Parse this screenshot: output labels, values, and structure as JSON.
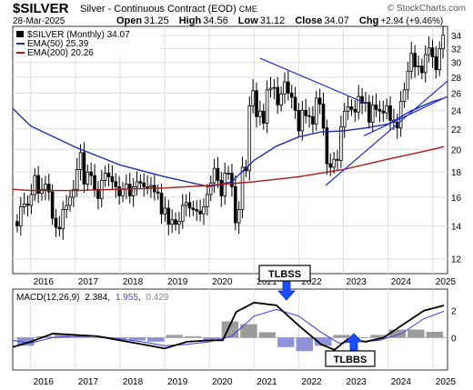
{
  "header": {
    "symbol": "$SILVER",
    "description": "Silver - Continuous Contract (EOD)",
    "exchange": "CME",
    "watermark": "© StockCharts.com",
    "date": "28-Mar-2025",
    "open_label": "Open",
    "open": "31.25",
    "high_label": "High",
    "high": "34.56",
    "low_label": "Low",
    "low": "31.12",
    "close_label": "Close",
    "close": "34.07",
    "chg_label": "Chg",
    "chg": "+2.94 (+9.46%)"
  },
  "legend": {
    "price": "$SILVER (Monthly) 34.07",
    "ema50": "EMA(50) 25.39",
    "ema200": "EMA(200) 20.26"
  },
  "macd_legend": {
    "name": "MACD(12,26,9)",
    "macd": "2.384",
    "signal": "1.955",
    "hist": "0.429"
  },
  "annotations": {
    "tlbss": "TLBSS",
    "tlbbs": "TLBBS"
  },
  "colors": {
    "up": "#ffffff",
    "down": "#000000",
    "ema50": "#1f2fa8",
    "ema200": "#b01818",
    "trendline": "#2030c8",
    "signal": "#4848e0",
    "hist": "#8a8a8a",
    "hist_neg": "#7b7fcf",
    "arrow": "#1a4fff"
  },
  "chart_data": [
    {
      "type": "candlestick",
      "title": "$SILVER (Monthly)",
      "x_ticks": [
        "2016",
        "2017",
        "2018",
        "2019",
        "2020",
        "2021",
        "2022",
        "2023",
        "2024",
        "2025"
      ],
      "y_ticks": [
        12,
        14,
        16,
        18,
        20,
        22,
        24,
        26,
        28,
        30,
        32,
        34
      ],
      "scale": "log",
      "ylim": [
        11.2,
        35.5
      ],
      "closes": [
        14.0,
        15.3,
        15.5,
        15.4,
        16.2,
        17.7,
        16.3,
        16.6,
        17.0,
        16.4,
        14.5,
        13.9,
        13.8,
        15.1,
        15.4,
        16.0,
        16.6,
        18.2,
        19.7,
        17.0,
        18.0,
        17.7,
        16.6,
        15.9,
        17.3,
        17.9,
        17.6,
        17.2,
        16.8,
        16.1,
        16.6,
        17.0,
        16.1,
        16.8,
        17.2,
        17.1,
        16.8,
        16.8,
        16.9,
        16.4,
        16.3,
        14.8,
        15.2,
        14.1,
        14.4,
        14.1,
        14.3,
        15.4,
        15.6,
        15.2,
        15.1,
        15.0,
        14.8,
        15.3,
        16.2,
        17.1,
        18.3,
        17.3,
        16.1,
        17.9,
        17.9,
        16.8,
        14.2,
        15.1,
        18.4,
        18.1,
        24.5,
        26.3,
        23.3,
        23.9,
        22.6,
        26.4,
        26.6,
        26.7,
        24.6,
        25.9,
        27.4,
        26.0,
        25.5,
        24.0,
        21.8,
        24.0,
        23.4,
        23.3,
        22.5,
        25.4,
        24.7,
        22.1,
        18.7,
        18.4,
        19.1,
        19.0,
        22.2,
        23.9,
        24.4,
        24.1,
        23.8,
        25.6,
        24.8,
        24.9,
        22.7,
        24.6,
        24.1,
        23.9,
        23.7,
        24.5,
        22.9,
        22.7,
        22.1,
        25.0,
        26.4,
        28.8,
        31.3,
        29.4,
        29.5,
        28.6,
        31.1,
        32.1,
        30.8,
        29.0,
        32.0,
        34.07
      ]
    },
    {
      "type": "line",
      "title": "EMA(50)",
      "last": 25.39,
      "points": [
        [
          2015.6,
          24.2
        ],
        [
          2016,
          22.3
        ],
        [
          2017,
          20.2
        ],
        [
          2018,
          18.6
        ],
        [
          2019,
          17.6
        ],
        [
          2020,
          16.8
        ],
        [
          2020.5,
          17.2
        ],
        [
          2021,
          19.0
        ],
        [
          2021.5,
          20.3
        ],
        [
          2022,
          21.2
        ],
        [
          2022.5,
          21.7
        ],
        [
          2023,
          21.8
        ],
        [
          2023.5,
          22.1
        ],
        [
          2024,
          22.5
        ],
        [
          2024.5,
          23.9
        ],
        [
          2025,
          25.0
        ],
        [
          2025.25,
          25.39
        ]
      ]
    },
    {
      "type": "line",
      "title": "EMA(200)",
      "last": 20.26,
      "points": [
        [
          2015.6,
          16.6
        ],
        [
          2016,
          16.5
        ],
        [
          2017,
          16.5
        ],
        [
          2018,
          16.6
        ],
        [
          2019,
          16.7
        ],
        [
          2020,
          16.9
        ],
        [
          2021,
          17.2
        ],
        [
          2022,
          17.6
        ],
        [
          2023,
          18.2
        ],
        [
          2024,
          19.1
        ],
        [
          2025,
          20.0
        ],
        [
          2025.25,
          20.26
        ]
      ]
    },
    {
      "type": "line",
      "title": "MACD(12,26,9)",
      "ylim": [
        -2.4,
        3.6
      ],
      "macd": [
        [
          2015.6,
          -0.7
        ],
        [
          2016,
          -0.3
        ],
        [
          2016.5,
          0.3
        ],
        [
          2017,
          0.2
        ],
        [
          2017.5,
          0.1
        ],
        [
          2018,
          -0.2
        ],
        [
          2018.5,
          -0.5
        ],
        [
          2019,
          -0.8
        ],
        [
          2019.5,
          -0.3
        ],
        [
          2020,
          -0.2
        ],
        [
          2020.3,
          -0.2
        ],
        [
          2020.6,
          1.9
        ],
        [
          2021,
          2.6
        ],
        [
          2021.5,
          2.4
        ],
        [
          2022,
          0.9
        ],
        [
          2022.5,
          -0.5
        ],
        [
          2022.8,
          -0.9
        ],
        [
          2023.1,
          -0.1
        ],
        [
          2023.5,
          -0.3
        ],
        [
          2023.9,
          0.0
        ],
        [
          2024.3,
          0.9
        ],
        [
          2024.8,
          2.0
        ],
        [
          2025.25,
          2.384
        ]
      ],
      "signal": [
        [
          2015.6,
          -0.2
        ],
        [
          2016,
          -0.4
        ],
        [
          2016.5,
          0.0
        ],
        [
          2017,
          0.1
        ],
        [
          2017.5,
          0.1
        ],
        [
          2018,
          -0.1
        ],
        [
          2018.5,
          -0.3
        ],
        [
          2019,
          -0.6
        ],
        [
          2019.5,
          -0.5
        ],
        [
          2020,
          -0.3
        ],
        [
          2020.5,
          0.1
        ],
        [
          2021,
          1.6
        ],
        [
          2021.5,
          2.1
        ],
        [
          2022,
          1.6
        ],
        [
          2022.5,
          0.4
        ],
        [
          2022.9,
          -0.4
        ],
        [
          2023.3,
          -0.3
        ],
        [
          2023.8,
          -0.2
        ],
        [
          2024.3,
          0.3
        ],
        [
          2024.8,
          1.4
        ],
        [
          2025.25,
          1.955
        ]
      ],
      "hist_values": [
        -0.6,
        0.1,
        0.3,
        0.2,
        0.0,
        -0.1,
        -0.2,
        -0.3,
        0.2,
        0.1,
        -0.2,
        1.2,
        1.0,
        0.4,
        -0.7,
        -1.0,
        -0.6,
        0.2,
        0.0,
        0.2,
        0.6,
        0.6,
        0.429
      ]
    }
  ]
}
